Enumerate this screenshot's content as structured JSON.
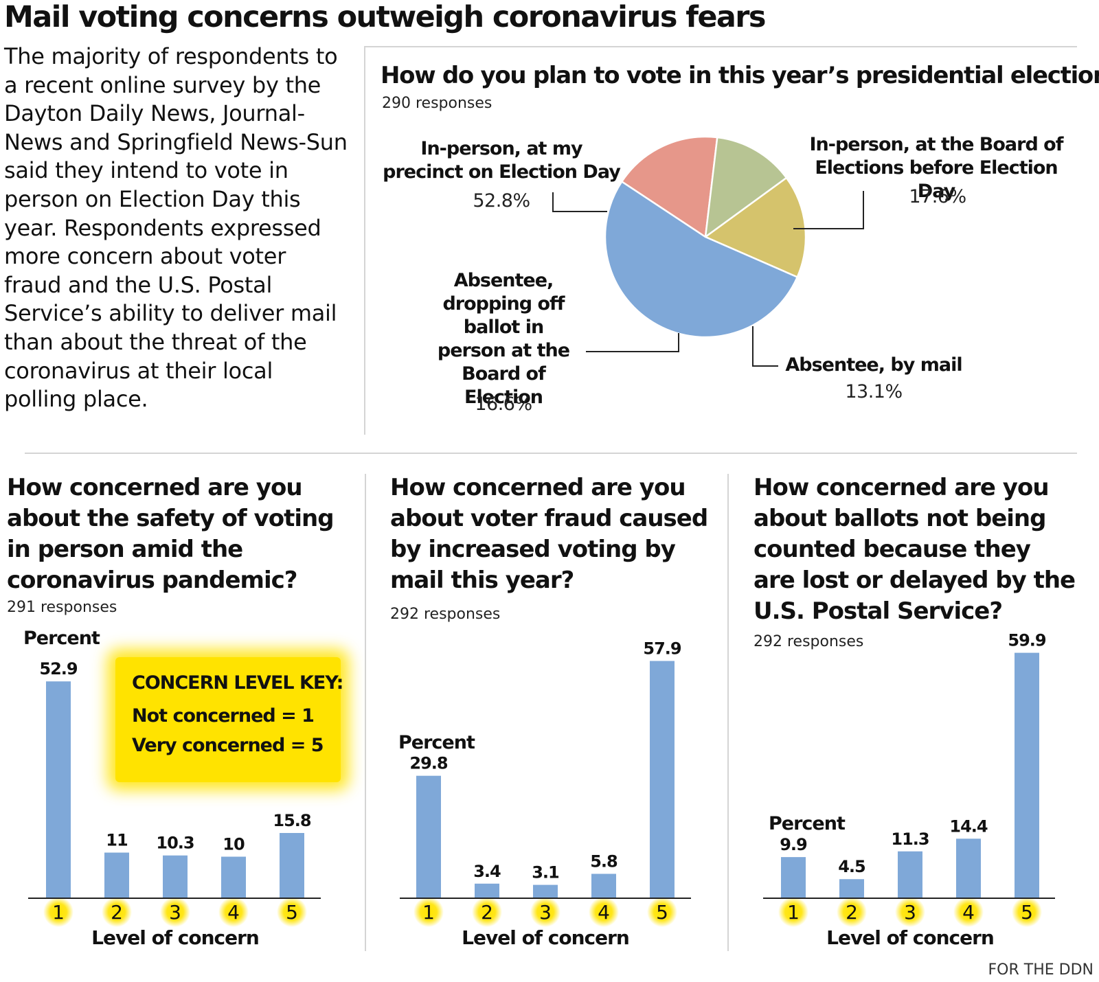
{
  "title": "Mail voting concerns outweigh coronavirus fears",
  "intro": "The majority of respondents to a recent online survey by the Dayton Daily News, Journal-News and Springfield News-Sun said they intend to vote in person on Election Day this year. Respondents expressed more concern about voter fraud and the U.S. Postal Service’s ability to deliver mail than about the  threat of the coronavirus at their local polling place.",
  "key": {
    "title": "CONCERN LEVEL KEY:",
    "line1": "Not concerned = 1",
    "line2": "Very concerned = 5",
    "color": "#ffe300"
  },
  "credit": "FOR THE DDN",
  "colors": {
    "bar": "#7fa8d8",
    "axis": "#222222",
    "highlight": "#ffe300"
  },
  "chart_data": [
    {
      "type": "pie",
      "title": "How do you plan to vote in this year’s presidential election?",
      "subtitle": "290 responses",
      "slices": [
        {
          "label": "In-person, at my precinct on Election Day",
          "value": 52.8,
          "pct_label": "52.8%",
          "color": "#7fa8d8"
        },
        {
          "label": "In-person, at the Board of Elections before Election Day",
          "value": 17.6,
          "pct_label": "17.6%",
          "color": "#e6978a"
        },
        {
          "label": "Absentee, by mail",
          "value": 13.1,
          "pct_label": "13.1%",
          "color": "#b7c493"
        },
        {
          "label": "Absentee, dropping off ballot in person at the Board of Election",
          "value": 16.6,
          "pct_label": "16.6%",
          "color": "#d5c36c"
        }
      ]
    },
    {
      "type": "bar",
      "title": "How concerned are you about the safety of voting in person amid the coronavirus pandemic?",
      "subtitle": "291 responses",
      "ylabel": "Percent",
      "xlabel": "Level of concern",
      "categories": [
        "1",
        "2",
        "3",
        "4",
        "5"
      ],
      "values": [
        52.9,
        11,
        10.3,
        10,
        15.8
      ],
      "value_labels": [
        "52.9",
        "11",
        "10.3",
        "10",
        "15.8"
      ],
      "ylim": [
        0,
        60
      ]
    },
    {
      "type": "bar",
      "title": "How concerned are you about voter fraud caused by increased voting by mail this year?",
      "subtitle": "292 responses",
      "ylabel": "Percent",
      "xlabel": "Level of concern",
      "categories": [
        "1",
        "2",
        "3",
        "4",
        "5"
      ],
      "values": [
        29.8,
        3.4,
        3.1,
        5.8,
        57.9
      ],
      "value_labels": [
        "29.8",
        "3.4",
        "3.1",
        "5.8",
        "57.9"
      ],
      "ylim": [
        0,
        60
      ]
    },
    {
      "type": "bar",
      "title": "How concerned are you about ballots not being counted because they are lost or delayed by the U.S. Postal Service?",
      "subtitle": "292 responses",
      "ylabel": "Percent",
      "xlabel": "Level of concern",
      "categories": [
        "1",
        "2",
        "3",
        "4",
        "5"
      ],
      "values": [
        9.9,
        4.5,
        11.3,
        14.4,
        59.9
      ],
      "value_labels": [
        "9.9",
        "4.5",
        "11.3",
        "14.4",
        "59.9"
      ],
      "ylim": [
        0,
        60
      ]
    }
  ]
}
